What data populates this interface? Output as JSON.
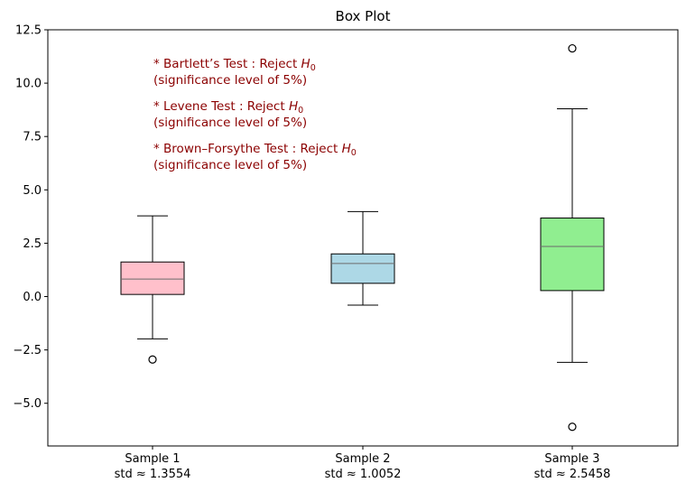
{
  "chart_data": {
    "type": "box",
    "title": "Box Plot",
    "xlabel": "",
    "ylabel": "",
    "ylim": [
      -7.0,
      12.5
    ],
    "yticks": [
      -5.0,
      -2.5,
      0.0,
      2.5,
      5.0,
      7.5,
      10.0,
      12.5
    ],
    "ytick_labels": [
      "−5.0",
      "−2.5",
      "0.0",
      "2.5",
      "5.0",
      "7.5",
      "10.0",
      "12.5"
    ],
    "grid": false,
    "categories": [
      {
        "name": "Sample 1",
        "sub": "std ≈ 1.3554"
      },
      {
        "name": "Sample 2",
        "sub": "std ≈ 1.0052"
      },
      {
        "name": "Sample 3",
        "sub": "std ≈ 2.5458"
      }
    ],
    "boxes": [
      {
        "whisker_low": -1.98,
        "q1": 0.1,
        "median": 0.82,
        "q3": 1.62,
        "whisker_high": 3.78,
        "outliers": [
          -2.95
        ],
        "color": "#ffc0cb"
      },
      {
        "whisker_low": -0.4,
        "q1": 0.62,
        "median": 1.55,
        "q3": 2.0,
        "whisker_high": 3.98,
        "outliers": [],
        "color": "#add8e6"
      },
      {
        "whisker_low": -3.08,
        "q1": 0.28,
        "median": 2.35,
        "q3": 3.68,
        "whisker_high": 8.8,
        "outliers": [
          11.63,
          -6.1
        ],
        "color": "#90ee90"
      }
    ],
    "annotations": [
      {
        "line1": "* Bartlett’s Test : Reject H",
        "sub": "0",
        "line2": "(significance level of 5%)"
      },
      {
        "line1": "* Levene Test : Reject H",
        "sub": "0",
        "line2": "(significance level of 5%)"
      },
      {
        "line1": "* Brown–Forsythe Test : Reject H",
        "sub": "0",
        "line2": "(significance level of 5%)"
      }
    ],
    "annotation_color": "#8b0000"
  }
}
